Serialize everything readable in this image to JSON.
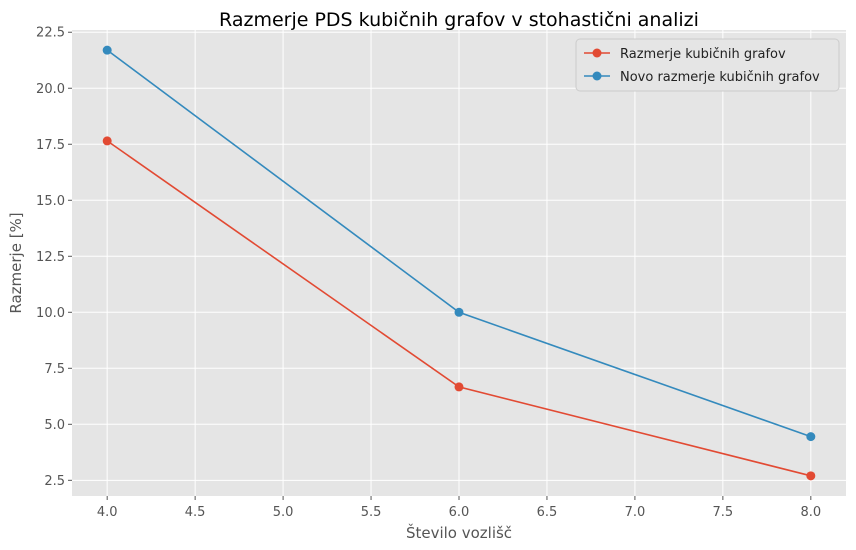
{
  "chart_data": {
    "type": "line",
    "title": "Razmerje PDS kubičnih grafov v stohastični analizi",
    "xlabel": "Število vozlišč",
    "ylabel": "Razmerje [%]",
    "xlim": [
      3.8,
      8.2
    ],
    "ylim": [
      1.8,
      22.6
    ],
    "xticks": [
      "4.0",
      "4.5",
      "5.0",
      "5.5",
      "6.0",
      "6.5",
      "7.0",
      "7.5",
      "8.0"
    ],
    "yticks": [
      "2.5",
      "5.0",
      "7.5",
      "10.0",
      "12.5",
      "15.0",
      "17.5",
      "20.0",
      "22.5"
    ],
    "grid": true,
    "legend_position": "top-right",
    "x": [
      4,
      6,
      8
    ],
    "series": [
      {
        "name": "Razmerje kubičnih grafov",
        "values": [
          17.65,
          6.67,
          2.7
        ],
        "color": "#E24A33"
      },
      {
        "name": "Novo razmerje kubičnih grafov",
        "values": [
          21.7,
          10.0,
          4.45
        ],
        "color": "#348ABD"
      }
    ]
  }
}
